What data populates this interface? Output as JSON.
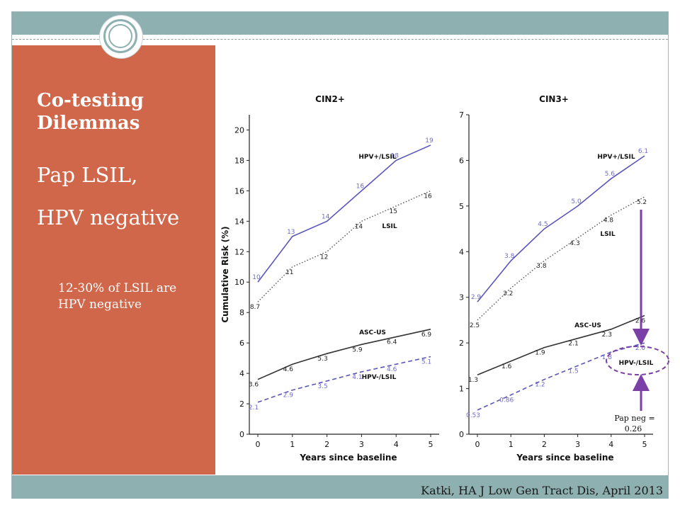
{
  "slide": {
    "heading": "Co-testing Dilemmas",
    "subtitle_line1": "Pap LSIL,",
    "subtitle_line2": "HPV negative",
    "note": "12-30% of LSIL are HPV negative",
    "citation": "Katki, HA J Low Gen Tract Dis, April 2013",
    "annotation": [
      "Pap neg =",
      "0.26"
    ]
  },
  "colors": {
    "sidebar": "#d0664a",
    "band": "#8fb0b0",
    "hpv_pos_line": "#5a56b8",
    "dark_line": "#333333",
    "annotation": "#7b3fa8"
  },
  "chart_data": [
    {
      "type": "line",
      "title": "CIN2+",
      "xlabel": "Years since baseline",
      "ylabel": "Cumulative Risk (%)",
      "xlim": [
        0,
        5
      ],
      "ylim": [
        0,
        21
      ],
      "yticks": [
        0,
        2,
        4,
        6,
        8,
        10,
        12,
        14,
        16,
        18,
        20
      ],
      "xticks": [
        0,
        1,
        2,
        3,
        4,
        5
      ],
      "grid": false,
      "series": [
        {
          "name": "HPV+/LSIL",
          "style": "solid",
          "color": "#5a56b8",
          "x": [
            0,
            1,
            2,
            3,
            4,
            5
          ],
          "values": [
            10,
            13,
            14,
            16,
            18,
            19
          ],
          "labels": [
            "10",
            "13",
            "14",
            "16",
            "18",
            "19"
          ]
        },
        {
          "name": "LSIL",
          "style": "dotted",
          "color": "#555555",
          "x": [
            0,
            1,
            2,
            3,
            4,
            5
          ],
          "values": [
            8.7,
            11,
            12,
            14,
            15,
            16
          ],
          "labels": [
            "8.7",
            "11",
            "12",
            "14",
            "15",
            "16"
          ]
        },
        {
          "name": "ASC-US",
          "style": "solid",
          "color": "#333333",
          "x": [
            0,
            1,
            2,
            3,
            4,
            5
          ],
          "values": [
            3.6,
            4.6,
            5.3,
            5.9,
            6.4,
            6.9
          ],
          "labels": [
            "3.6",
            "4.6",
            "5.3",
            "5.9",
            "6.4",
            "6.9"
          ]
        },
        {
          "name": "HPV-/LSIL",
          "style": "dashed",
          "color": "#5a56b8",
          "x": [
            0,
            1,
            2,
            3,
            4,
            5
          ],
          "values": [
            2.1,
            2.9,
            3.5,
            4.1,
            4.6,
            5.1
          ],
          "labels": [
            "2.1",
            "2.9",
            "3.5",
            "4.1",
            "4.6",
            "5.1"
          ]
        }
      ]
    },
    {
      "type": "line",
      "title": "CIN3+",
      "xlabel": "Years since baseline",
      "ylabel": "",
      "xlim": [
        0,
        5
      ],
      "ylim": [
        0,
        7
      ],
      "yticks": [
        0,
        1,
        2,
        3,
        4,
        5,
        6,
        7
      ],
      "xticks": [
        0,
        1,
        2,
        3,
        4,
        5
      ],
      "grid": false,
      "series": [
        {
          "name": "HPV+/LSIL",
          "style": "solid",
          "color": "#5a56b8",
          "x": [
            0,
            1,
            2,
            3,
            4,
            5
          ],
          "values": [
            2.9,
            3.8,
            4.5,
            5.0,
            5.6,
            6.1
          ],
          "labels": [
            "2.9",
            "3.8",
            "4.5",
            "5.0",
            "5.6",
            "6.1"
          ]
        },
        {
          "name": "LSIL",
          "style": "dotted",
          "color": "#555555",
          "x": [
            0,
            1,
            2,
            3,
            4,
            5
          ],
          "values": [
            2.5,
            3.2,
            3.8,
            4.3,
            4.8,
            5.2
          ],
          "labels": [
            "2.5",
            "3.2",
            "3.8",
            "4.3",
            "4.8",
            "5.2"
          ]
        },
        {
          "name": "ASC-US",
          "style": "solid",
          "color": "#333333",
          "x": [
            0,
            1,
            2,
            3,
            4,
            5
          ],
          "values": [
            1.3,
            1.6,
            1.9,
            2.1,
            2.3,
            2.6
          ],
          "labels": [
            "1.3",
            "1.6",
            "1.9",
            "2.1",
            "2.3",
            "2.6"
          ]
        },
        {
          "name": "HPV-/LSIL",
          "style": "dashed",
          "color": "#5a56b8",
          "x": [
            0,
            1,
            2,
            3,
            4,
            5
          ],
          "values": [
            0.53,
            0.86,
            1.2,
            1.5,
            1.8,
            2.0
          ],
          "labels": [
            "0.53",
            "0.86",
            "1.2",
            "1.5",
            "1.8",
            "2.0"
          ]
        }
      ]
    }
  ]
}
